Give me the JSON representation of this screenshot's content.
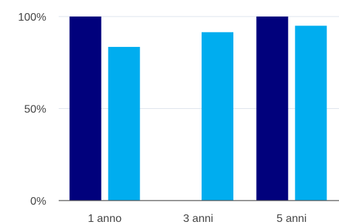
{
  "chart_data": {
    "type": "bar",
    "categories": [
      "1 anno",
      "3 anni",
      "5 anni"
    ],
    "series": [
      {
        "values": [
          100,
          null,
          100
        ],
        "color": "#01017c"
      },
      {
        "values": [
          83.5,
          91.5,
          95
        ],
        "color": "#00adef"
      }
    ],
    "y_ticks": [
      "0%",
      "50%",
      "100%"
    ],
    "y_tick_values": [
      0,
      50,
      100
    ],
    "ylim": [
      0,
      100
    ],
    "grid": true,
    "legend": "none"
  }
}
